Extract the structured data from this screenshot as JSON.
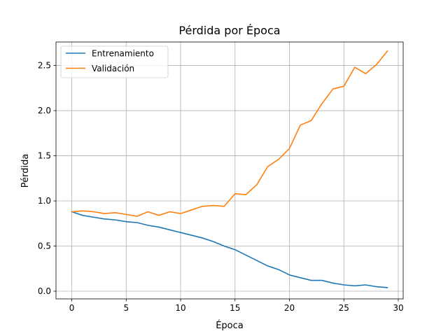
{
  "chart_data": {
    "type": "line",
    "title": "Pérdida por Época",
    "xlabel": "Época",
    "ylabel": "Pérdida",
    "xlim": [
      -1.45,
      30.45
    ],
    "ylim": [
      -0.085,
      2.76
    ],
    "xticks": [
      0,
      5,
      10,
      15,
      20,
      25,
      30
    ],
    "xtick_labels": [
      "0",
      "5",
      "10",
      "15",
      "20",
      "25",
      "30"
    ],
    "yticks": [
      0.0,
      0.5,
      1.0,
      1.5,
      2.0,
      2.5
    ],
    "ytick_labels": [
      "0.0",
      "0.5",
      "1.0",
      "1.5",
      "2.0",
      "2.5"
    ],
    "grid": true,
    "legend_position": "top-left",
    "x": [
      0,
      1,
      2,
      3,
      4,
      5,
      6,
      7,
      8,
      9,
      10,
      11,
      12,
      13,
      14,
      15,
      16,
      17,
      18,
      19,
      20,
      21,
      22,
      23,
      24,
      25,
      26,
      27,
      28,
      29
    ],
    "series": [
      {
        "name": "Entrenamiento",
        "color": "#1f77b4",
        "values": [
          0.88,
          0.84,
          0.82,
          0.8,
          0.79,
          0.77,
          0.76,
          0.73,
          0.71,
          0.68,
          0.65,
          0.62,
          0.59,
          0.55,
          0.5,
          0.46,
          0.4,
          0.34,
          0.28,
          0.24,
          0.18,
          0.15,
          0.12,
          0.12,
          0.09,
          0.07,
          0.06,
          0.07,
          0.05,
          0.04
        ]
      },
      {
        "name": "Validación",
        "color": "#ff7f0e",
        "values": [
          0.88,
          0.89,
          0.88,
          0.86,
          0.87,
          0.85,
          0.83,
          0.88,
          0.84,
          0.88,
          0.86,
          0.9,
          0.94,
          0.95,
          0.94,
          1.08,
          1.07,
          1.18,
          1.38,
          1.46,
          1.58,
          1.84,
          1.89,
          2.08,
          2.24,
          2.27,
          2.48,
          2.41,
          2.51,
          2.66
        ]
      }
    ]
  }
}
